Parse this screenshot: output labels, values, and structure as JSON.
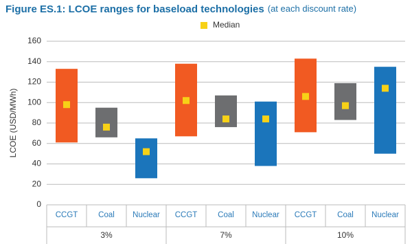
{
  "chart_data": {
    "type": "range_bar",
    "title": "Figure ES.1: LCOE ranges for baseload technologies",
    "subtitle": "(at each discount rate)",
    "y_label": "LCOE (USD/MWh)",
    "groups": [
      "3%",
      "7%",
      "10%"
    ],
    "categories": [
      "CCGT",
      "Coal",
      "Nuclear",
      "CCGT",
      "Coal",
      "Nuclear",
      "CCGT",
      "Coal",
      "Nuclear"
    ],
    "low": [
      61,
      66,
      26,
      67,
      76,
      38,
      71,
      83,
      50
    ],
    "high": [
      133,
      95,
      65,
      138,
      107,
      101,
      143,
      119,
      135
    ],
    "colors": [
      "#f15a22",
      "#6d6e70",
      "#1b75bb",
      "#f15a22",
      "#6d6e70",
      "#1b75bb",
      "#f15a22",
      "#6d6e70",
      "#1b75bb"
    ],
    "series": [
      {
        "name": "Median",
        "color": "#f7d117",
        "values": [
          98,
          76,
          52,
          102,
          84,
          84,
          106,
          97,
          114
        ]
      }
    ],
    "ylim": [
      0,
      160
    ],
    "yticks": [
      0,
      20,
      40,
      60,
      80,
      100,
      120,
      140,
      160
    ],
    "grid": true
  }
}
